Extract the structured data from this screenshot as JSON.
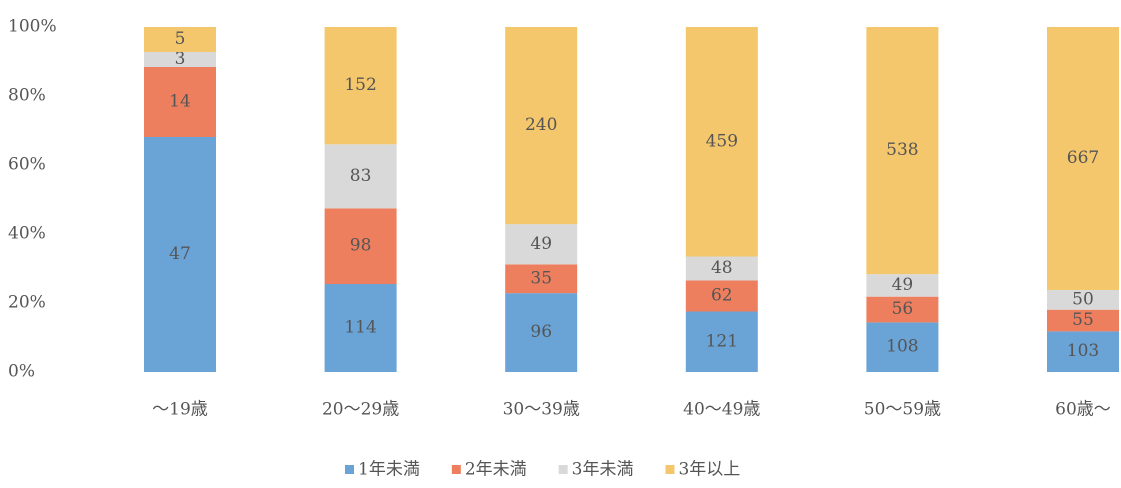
{
  "chart_data": {
    "type": "stacked_percent_bar",
    "categories": [
      "～19歳",
      "20～29歳",
      "30～39歳",
      "40～49歳",
      "50～59歳",
      "60歳～"
    ],
    "series": [
      {
        "name": "1年未満",
        "color": "#6aa3d6",
        "values": [
          47,
          114,
          96,
          121,
          108,
          103
        ]
      },
      {
        "name": "2年未満",
        "color": "#ee7f5e",
        "values": [
          14,
          98,
          35,
          62,
          56,
          55
        ]
      },
      {
        "name": "3年未満",
        "color": "#d9d9d9",
        "values": [
          3,
          83,
          49,
          48,
          49,
          50
        ]
      },
      {
        "name": "3年以上",
        "color": "#f4c76c",
        "values": [
          5,
          152,
          240,
          459,
          538,
          667
        ]
      }
    ],
    "ylim": [
      0,
      100
    ],
    "yticks": [
      {
        "value": 0,
        "label": "0%"
      },
      {
        "value": 20,
        "label": "20%"
      },
      {
        "value": 40,
        "label": "40%"
      },
      {
        "value": 60,
        "label": "60%"
      },
      {
        "value": 80,
        "label": "80%"
      },
      {
        "value": 100,
        "label": "100%"
      }
    ]
  }
}
